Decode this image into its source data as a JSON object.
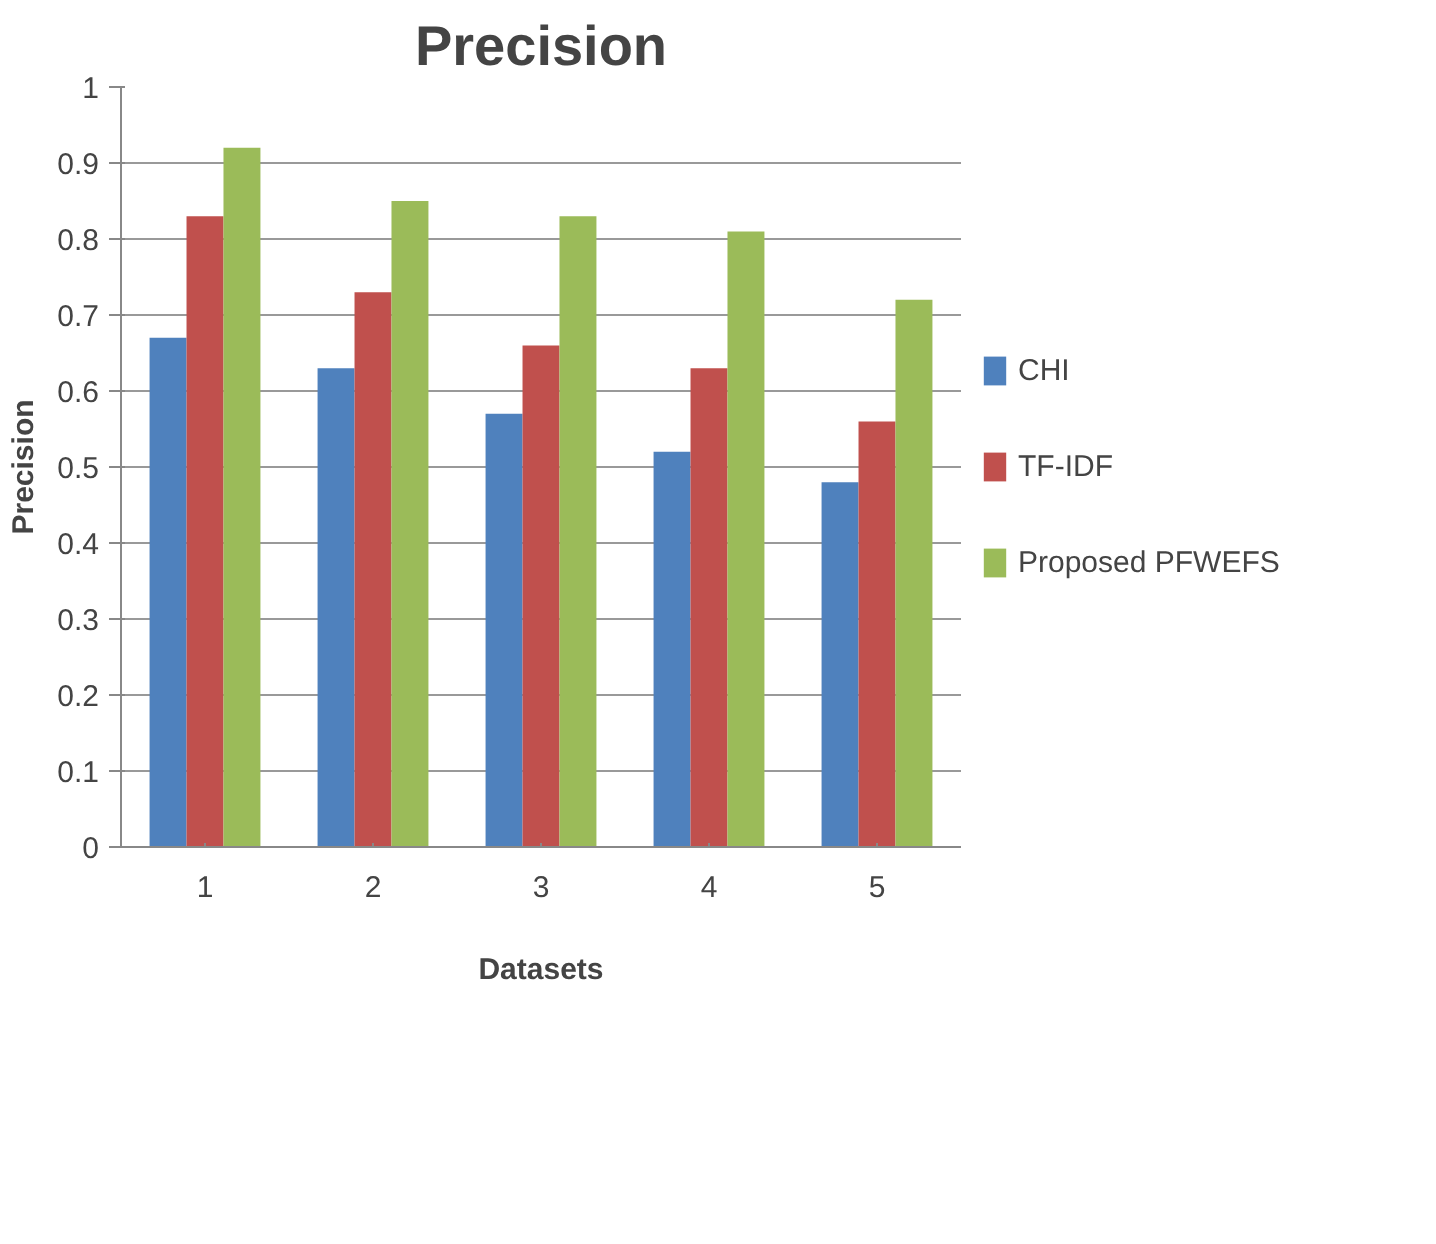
{
  "chart_data": {
    "type": "bar",
    "title": "Precision",
    "xlabel": "Datasets",
    "ylabel": "Precision",
    "categories": [
      "1",
      "2",
      "3",
      "4",
      "5"
    ],
    "series": [
      {
        "name": "CHI",
        "color": "#4f81bd",
        "values": [
          0.67,
          0.63,
          0.57,
          0.52,
          0.48
        ]
      },
      {
        "name": "TF-IDF",
        "color": "#c0504d",
        "values": [
          0.83,
          0.73,
          0.66,
          0.63,
          0.56
        ]
      },
      {
        "name": "Proposed PFWEFS",
        "color": "#9bbb59",
        "values": [
          0.92,
          0.85,
          0.83,
          0.81,
          0.72
        ]
      }
    ],
    "ylim": [
      0,
      1
    ],
    "yticks": [
      0,
      0.1,
      0.2,
      0.3,
      0.4,
      0.5,
      0.6,
      0.7,
      0.8,
      0.9,
      1
    ],
    "grid": "y",
    "legend": "right"
  }
}
